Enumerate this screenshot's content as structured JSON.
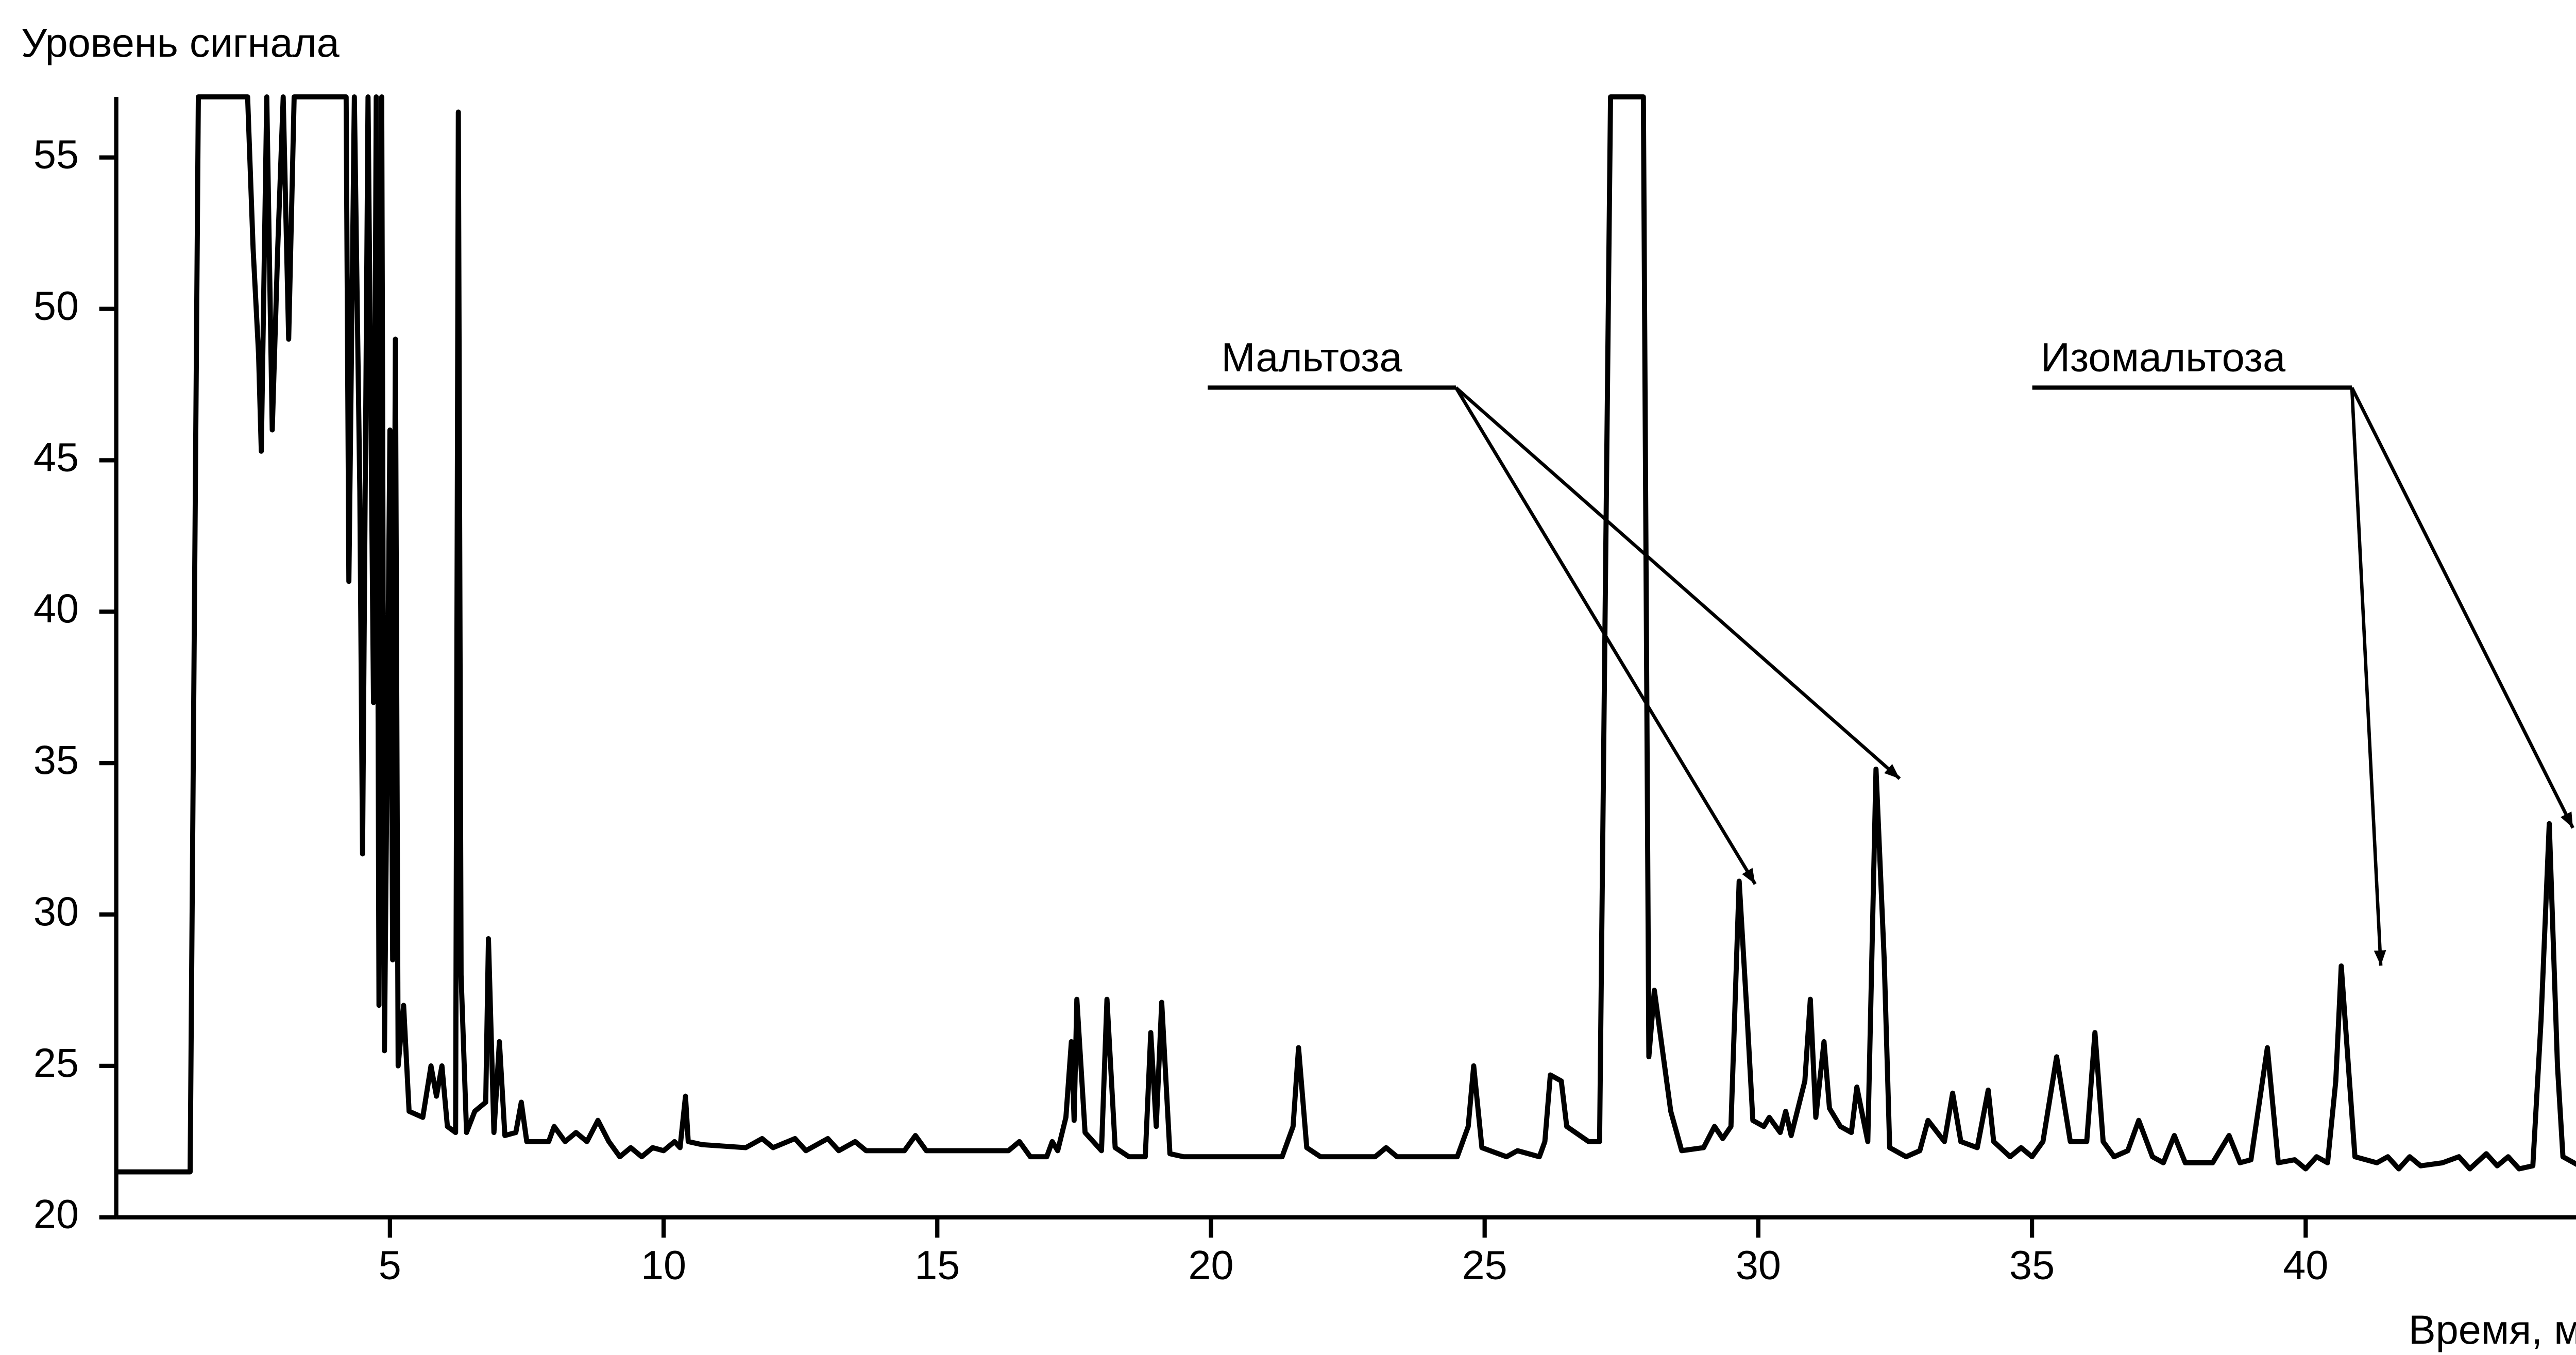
{
  "chart_data": {
    "type": "line",
    "y_label": "Уровень сигнала",
    "x_label": "Время, мин",
    "color": "#000000",
    "xlim": [
      0,
      46
    ],
    "ylim": [
      20,
      57
    ],
    "xticks": [
      5,
      10,
      15,
      20,
      25,
      30,
      35,
      40
    ],
    "yticks": [
      20,
      25,
      30,
      35,
      40,
      45,
      50,
      55
    ],
    "annotations": [
      "Мальтоза",
      "Изомальтоза"
    ],
    "x": [
      0,
      1.35,
      1.5,
      2.4,
      2.5,
      2.6,
      2.65,
      2.75,
      2.85,
      2.95,
      3.05,
      3.15,
      3.25,
      3.35,
      4.2,
      4.25,
      4.35,
      4.45,
      4.5,
      4.6,
      4.7,
      4.75,
      4.8,
      4.85,
      4.9,
      5.0,
      5.05,
      5.1,
      5.15,
      5.25,
      5.35,
      5.6,
      5.75,
      5.85,
      5.95,
      6.05,
      6.2,
      6.25,
      6.3,
      6.4,
      6.55,
      6.75,
      6.8,
      6.9,
      7.0,
      7.1,
      7.3,
      7.4,
      7.5,
      7.9,
      8.0,
      8.2,
      8.4,
      8.6,
      8.8,
      9.0,
      9.2,
      9.4,
      9.6,
      9.8,
      10.0,
      10.2,
      10.3,
      10.4,
      10.45,
      10.7,
      11.5,
      11.8,
      12.0,
      12.4,
      12.6,
      13.0,
      13.2,
      13.5,
      13.7,
      14.4,
      14.6,
      14.8,
      16.3,
      16.5,
      16.7,
      17.0,
      17.1,
      17.2,
      17.35,
      17.45,
      17.5,
      17.55,
      17.7,
      18.0,
      18.1,
      18.25,
      18.5,
      18.8,
      18.9,
      19.0,
      19.1,
      19.25,
      19.5,
      21.3,
      21.5,
      21.6,
      21.75,
      22.0,
      23.0,
      23.2,
      23.4,
      24.5,
      24.7,
      24.8,
      24.95,
      25.4,
      25.6,
      26.0,
      26.1,
      26.2,
      26.4,
      26.5,
      26.9,
      27.1,
      27.3,
      27.9,
      28.0,
      28.1,
      28.4,
      28.6,
      29.0,
      29.2,
      29.35,
      29.5,
      29.65,
      29.8,
      29.9,
      30.1,
      30.2,
      30.4,
      30.5,
      30.6,
      30.85,
      30.95,
      31.05,
      31.2,
      31.3,
      31.5,
      31.7,
      31.8,
      32.0,
      32.15,
      32.3,
      32.4,
      32.7,
      32.95,
      33.1,
      33.4,
      33.55,
      33.7,
      34.0,
      34.2,
      34.3,
      34.6,
      34.8,
      35.0,
      35.2,
      35.45,
      35.7,
      36.0,
      36.15,
      36.3,
      36.5,
      36.75,
      36.95,
      37.2,
      37.4,
      37.6,
      37.8,
      38.3,
      38.6,
      38.8,
      39.0,
      39.3,
      39.5,
      39.8,
      40.0,
      40.2,
      40.4,
      40.55,
      40.65,
      40.8,
      40.9,
      41.3,
      41.5,
      41.7,
      41.9,
      42.1,
      42.5,
      42.8,
      43.0,
      43.3,
      43.5,
      43.7,
      43.9,
      44.15,
      44.3,
      44.45,
      44.6,
      44.7,
      45.0,
      45.9
    ],
    "values": [
      21.5,
      21.5,
      57,
      57,
      52,
      48.5,
      45.3,
      57,
      46,
      52,
      57,
      49,
      57,
      57,
      57,
      41,
      57,
      44,
      32,
      57,
      37,
      57,
      27,
      57,
      25.5,
      46,
      28.5,
      49,
      25,
      27,
      23.5,
      23.3,
      25,
      24,
      25,
      23,
      22.8,
      56.5,
      28,
      22.8,
      23.5,
      23.8,
      29.2,
      22.8,
      25.8,
      22.7,
      22.8,
      23.8,
      22.5,
      22.5,
      23,
      22.5,
      22.8,
      22.5,
      23.2,
      22.5,
      22,
      22.3,
      22,
      22.3,
      22.2,
      22.5,
      22.3,
      24,
      22.5,
      22.4,
      22.3,
      22.6,
      22.3,
      22.6,
      22.2,
      22.6,
      22.2,
      22.5,
      22.2,
      22.2,
      22.7,
      22.2,
      22.2,
      22.5,
      22,
      22,
      22.5,
      22.2,
      23.3,
      25.8,
      23.2,
      27.2,
      22.8,
      22.2,
      27.2,
      22.3,
      22,
      22,
      26.1,
      23,
      27.1,
      22.1,
      22,
      22,
      23,
      25.6,
      22.3,
      22,
      22,
      22.3,
      22,
      22,
      23,
      25,
      22.3,
      22,
      22.2,
      22,
      22.5,
      24.7,
      24.5,
      23,
      22.5,
      22.5,
      57,
      57,
      25.3,
      27.5,
      23.5,
      22.2,
      22.3,
      23,
      22.6,
      23,
      31.1,
      26.5,
      23.2,
      23,
      23.3,
      22.8,
      23.5,
      22.7,
      24.5,
      27.2,
      23.3,
      25.8,
      23.6,
      23,
      22.8,
      24.3,
      22.5,
      34.8,
      28.5,
      22.3,
      22,
      22.2,
      23.2,
      22.5,
      24.1,
      22.5,
      22.3,
      24.2,
      22.5,
      22,
      22.3,
      22,
      22.5,
      25.3,
      22.5,
      22.5,
      26.1,
      22.5,
      22,
      22.2,
      23.2,
      22,
      21.8,
      22.7,
      21.8,
      21.8,
      22.7,
      21.8,
      21.9,
      25.6,
      21.8,
      21.9,
      21.6,
      22,
      21.8,
      24.5,
      28.3,
      24.5,
      22,
      21.8,
      22,
      21.6,
      22,
      21.7,
      21.8,
      22,
      21.6,
      22.1,
      21.7,
      22,
      21.6,
      21.7,
      26.5,
      33,
      25,
      22,
      21.7,
      21.7
    ]
  }
}
